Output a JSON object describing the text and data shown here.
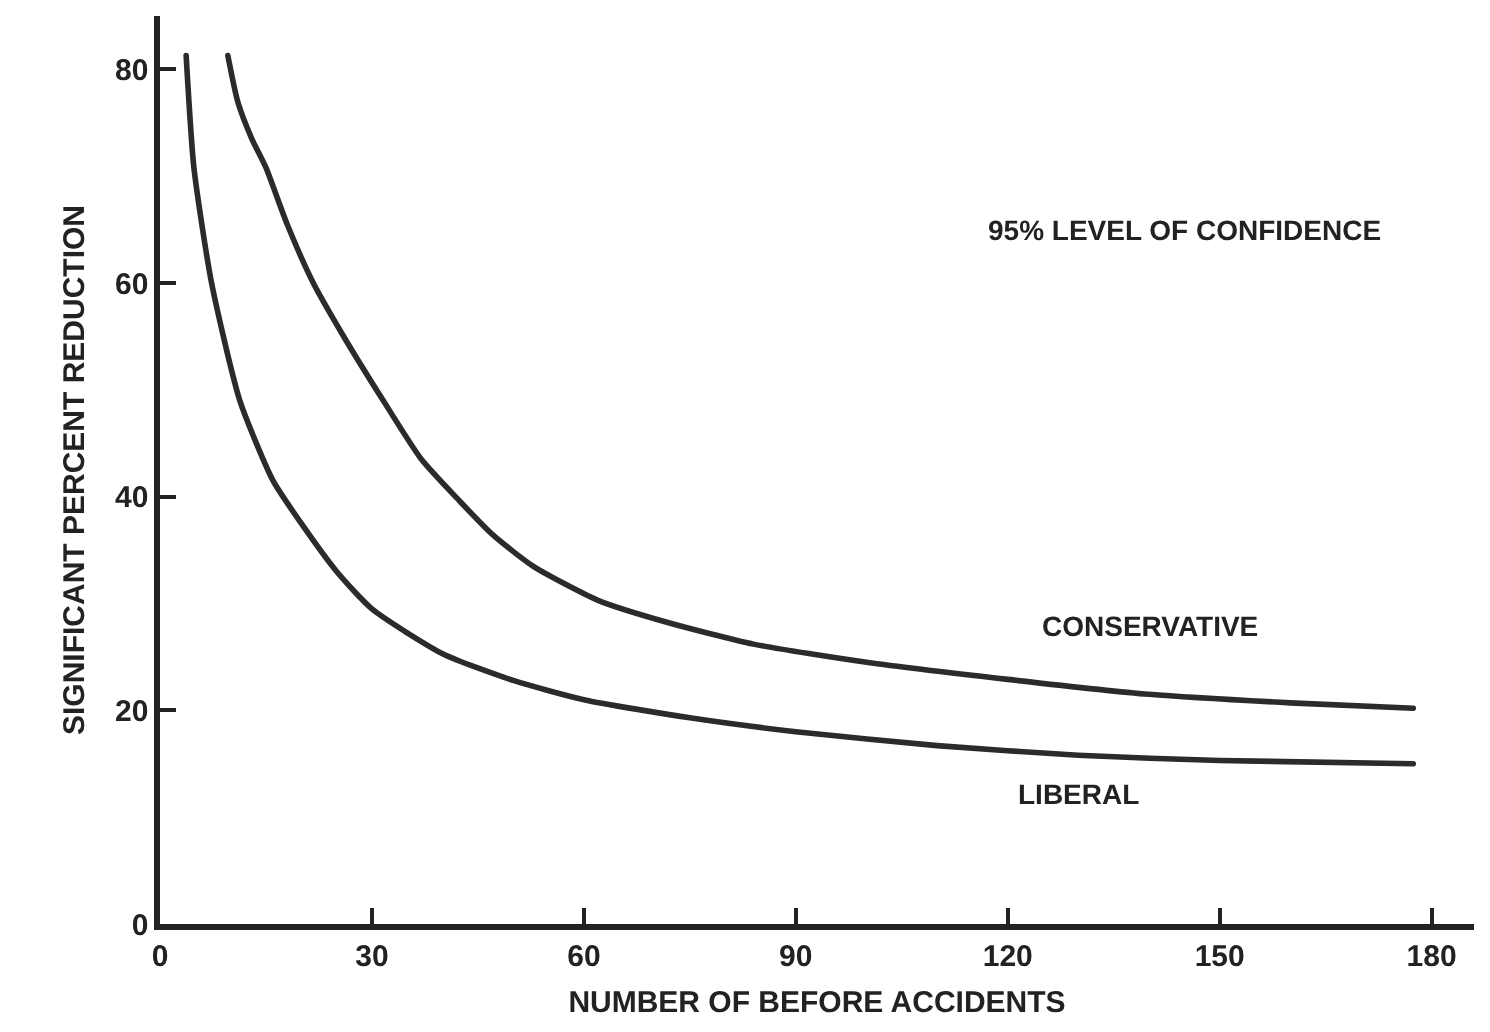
{
  "chart_data": {
    "type": "line",
    "xlabel": "NUMBER OF BEFORE ACCIDENTS",
    "ylabel": "SIGNIFICANT PERCENT REDUCTION",
    "annotations": [
      "95% LEVEL OF CONFIDENCE"
    ],
    "series": [
      {
        "name": "CONSERVATIVE",
        "color": "#2b2b2b",
        "x": [
          9.6,
          11,
          13,
          15,
          18,
          21.7,
          26,
          31.6,
          37,
          42.4,
          47,
          52.8,
          62,
          72,
          84,
          100,
          120,
          140,
          160,
          177.4
        ],
        "values": [
          81.3,
          77,
          73.5,
          70.8,
          65.5,
          60,
          55,
          49,
          43.5,
          39.6,
          36.5,
          33.5,
          30.3,
          28.2,
          26.2,
          24.5,
          22.9,
          21.5,
          20.7,
          20.2
        ]
      },
      {
        "name": "LIBERAL",
        "color": "#2b2b2b",
        "x": [
          3.7,
          4.8,
          7.3,
          11.3,
          16,
          20,
          25,
          30,
          40,
          50,
          60,
          75,
          90,
          110,
          130,
          150,
          177.4
        ],
        "values": [
          81.3,
          70.8,
          60,
          49,
          41.5,
          37.5,
          33,
          29.5,
          25.3,
          22.8,
          21,
          19.3,
          18,
          16.7,
          15.8,
          15.3,
          15.0
        ]
      }
    ],
    "xlim": [
      0,
      186
    ],
    "ylim": [
      0,
      85
    ],
    "xticks": [
      0,
      30,
      60,
      90,
      120,
      150,
      180
    ],
    "yticks": [
      0,
      20,
      40,
      60,
      80
    ],
    "grid": false,
    "line_style": "solid"
  }
}
